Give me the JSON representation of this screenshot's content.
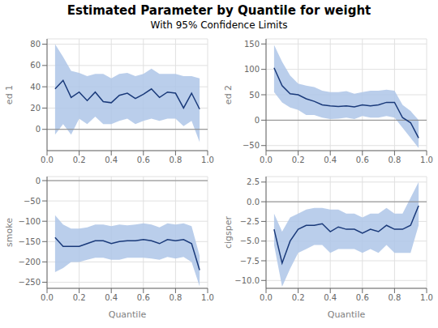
{
  "chart_data": [
    {
      "type": "line",
      "title": "Estimated Parameter by Quantile for weight",
      "subtitle": "With 95% Confidence Limits",
      "ylabel": "ed 1",
      "x": [
        0.05,
        0.1,
        0.15,
        0.2,
        0.25,
        0.3,
        0.35,
        0.4,
        0.45,
        0.5,
        0.55,
        0.6,
        0.65,
        0.7,
        0.75,
        0.8,
        0.85,
        0.9,
        0.95
      ],
      "xlim": [
        0,
        1
      ],
      "xticks": [
        {
          "value": 0,
          "label": "0.0"
        },
        0.2,
        0.4,
        0.6,
        0.8,
        {
          "value": 1,
          "label": "1.0"
        }
      ],
      "ylim": [
        -20,
        85
      ],
      "yticks": [
        0,
        20,
        40,
        60,
        80
      ],
      "grid": true,
      "series": [
        {
          "type": "area",
          "color": "#aec6e8",
          "lower": [
            -5,
            5,
            -5,
            10,
            5,
            12,
            5,
            5,
            8,
            10,
            5,
            8,
            10,
            8,
            10,
            10,
            3,
            8,
            -12
          ],
          "upper": [
            80,
            68,
            55,
            53,
            50,
            52,
            52,
            48,
            52,
            53,
            50,
            52,
            57,
            52,
            52,
            52,
            50,
            50,
            48
          ]
        },
        {
          "type": "line",
          "color": "#1a3a7a",
          "values": [
            38,
            46,
            30,
            35,
            27,
            35,
            26,
            25,
            32,
            34,
            29,
            33,
            38,
            30,
            35,
            34,
            20,
            34,
            19
          ]
        }
      ]
    },
    {
      "type": "line",
      "ylabel": "ed 2",
      "x": [
        0.05,
        0.1,
        0.15,
        0.2,
        0.25,
        0.3,
        0.35,
        0.4,
        0.45,
        0.5,
        0.55,
        0.6,
        0.65,
        0.7,
        0.75,
        0.8,
        0.85,
        0.9,
        0.95
      ],
      "xlim": [
        0,
        1
      ],
      "xticks": [
        {
          "value": 0,
          "label": "0.0"
        },
        0.2,
        0.4,
        0.6,
        0.8,
        {
          "value": 1,
          "label": "1.0"
        }
      ],
      "ylim": [
        -60,
        160
      ],
      "yticks": [
        {
          "value": -50,
          "label": "−50"
        },
        0,
        50,
        100,
        150
      ],
      "grid": true,
      "series": [
        {
          "type": "area",
          "color": "#aec6e8",
          "lower": [
            55,
            35,
            25,
            20,
            10,
            10,
            5,
            2,
            3,
            5,
            2,
            8,
            5,
            5,
            8,
            5,
            -15,
            -35,
            -55
          ],
          "upper": [
            148,
            115,
            88,
            72,
            68,
            65,
            58,
            55,
            55,
            57,
            52,
            55,
            58,
            58,
            60,
            58,
            30,
            18,
            0
          ]
        },
        {
          "type": "line",
          "color": "#1a3a7a",
          "values": [
            103,
            68,
            52,
            50,
            42,
            37,
            30,
            28,
            27,
            28,
            26,
            30,
            28,
            30,
            35,
            35,
            5,
            -5,
            -35
          ]
        }
      ]
    },
    {
      "type": "line",
      "ylabel": "smoke",
      "xlabel": "Quantile",
      "x": [
        0.05,
        0.1,
        0.15,
        0.2,
        0.25,
        0.3,
        0.35,
        0.4,
        0.45,
        0.5,
        0.55,
        0.6,
        0.65,
        0.7,
        0.75,
        0.8,
        0.85,
        0.9,
        0.95
      ],
      "xlim": [
        0,
        1
      ],
      "xticks": [
        {
          "value": 0,
          "label": "0.0"
        },
        0.2,
        0.4,
        0.6,
        0.8,
        {
          "value": 1,
          "label": "1.0"
        }
      ],
      "ylim": [
        -265,
        10
      ],
      "yticks": [
        {
          "value": -250,
          "label": "−250"
        },
        {
          "value": -200,
          "label": "−200"
        },
        {
          "value": -150,
          "label": "−150"
        },
        {
          "value": -100,
          "label": "−100"
        },
        {
          "value": -50,
          "label": "−50"
        },
        0
      ],
      "grid": true,
      "series": [
        {
          "type": "area",
          "color": "#aec6e8",
          "lower": [
            -225,
            -215,
            -200,
            -200,
            -195,
            -190,
            -190,
            -195,
            -195,
            -190,
            -190,
            -190,
            -192,
            -195,
            -188,
            -192,
            -188,
            -200,
            -260
          ],
          "upper": [
            -85,
            -108,
            -118,
            -118,
            -115,
            -108,
            -108,
            -112,
            -108,
            -110,
            -108,
            -105,
            -108,
            -115,
            -105,
            -108,
            -105,
            -112,
            -185
          ]
        },
        {
          "type": "line",
          "color": "#1a3a7a",
          "values": [
            -140,
            -162,
            -162,
            -162,
            -155,
            -148,
            -148,
            -155,
            -150,
            -148,
            -148,
            -145,
            -148,
            -155,
            -145,
            -148,
            -145,
            -155,
            -220
          ]
        }
      ]
    },
    {
      "type": "line",
      "ylabel": "cigsper",
      "xlabel": "Quantile",
      "x": [
        0.05,
        0.1,
        0.15,
        0.2,
        0.25,
        0.3,
        0.35,
        0.4,
        0.45,
        0.5,
        0.55,
        0.6,
        0.65,
        0.7,
        0.75,
        0.8,
        0.85,
        0.9,
        0.95
      ],
      "xlim": [
        0,
        1
      ],
      "xticks": [
        {
          "value": 0,
          "label": "0.0"
        },
        0.2,
        0.4,
        0.6,
        0.8,
        {
          "value": 1,
          "label": "1.0"
        }
      ],
      "ylim": [
        -11,
        3.2
      ],
      "yticks": [
        {
          "value": -10,
          "label": "−10.0"
        },
        {
          "value": -7.5,
          "label": "−7.5"
        },
        {
          "value": -5,
          "label": "−5.0"
        },
        {
          "value": -2.5,
          "label": "−2.5"
        },
        {
          "value": 0,
          "label": "0.0"
        },
        2.5
      ],
      "grid": true,
      "series": [
        {
          "type": "area",
          "color": "#aec6e8",
          "lower": [
            -5.5,
            -10.8,
            -8.5,
            -6.5,
            -6.0,
            -5.5,
            -5.5,
            -6.5,
            -6.0,
            -6.0,
            -6.0,
            -6.5,
            -6.0,
            -6.5,
            -5.5,
            -6.5,
            -6.5,
            -6.5,
            -3.0
          ],
          "upper": [
            -1.5,
            -3.8,
            -2.0,
            -1.5,
            -1.0,
            -0.8,
            -0.8,
            -1.0,
            -1.0,
            -1.5,
            -1.5,
            -2.0,
            -1.5,
            -1.5,
            -0.8,
            -1.5,
            -1.5,
            0.5,
            2.5
          ]
        },
        {
          "type": "line",
          "color": "#1a3a7a",
          "values": [
            -3.5,
            -7.8,
            -5.0,
            -3.5,
            -3.0,
            -3.0,
            -2.8,
            -3.8,
            -3.2,
            -3.5,
            -3.5,
            -4.0,
            -3.5,
            -3.8,
            -3.0,
            -3.5,
            -3.5,
            -3.0,
            -0.5
          ]
        }
      ]
    }
  ]
}
